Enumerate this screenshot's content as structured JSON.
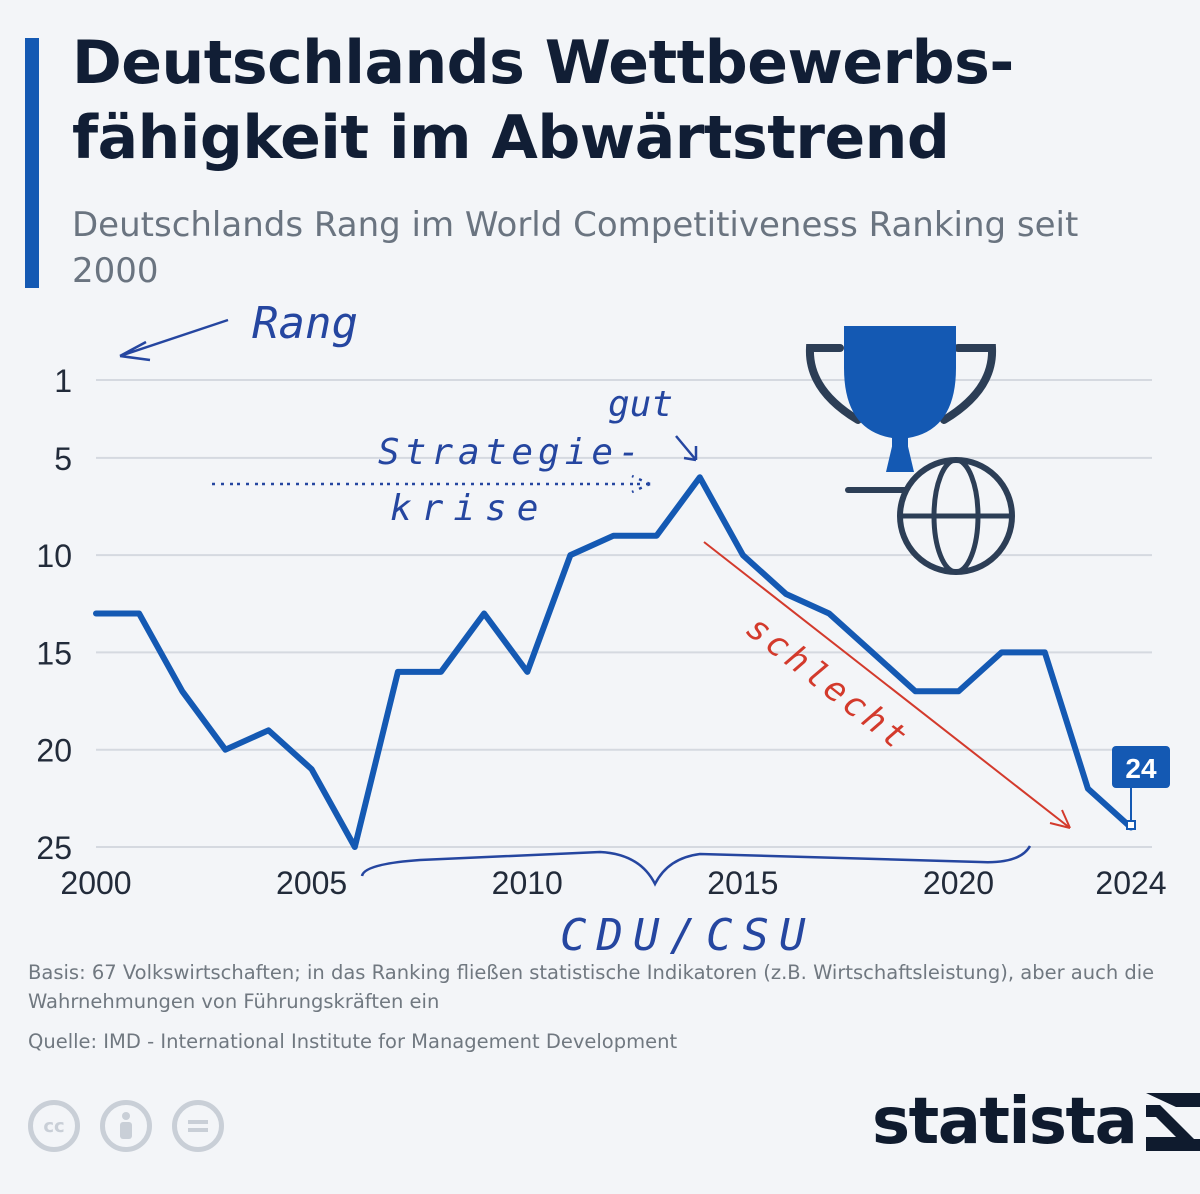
{
  "header": {
    "title": "Deutschlands Wettbewerbs-fähigkeit im Abwärtstrend",
    "subtitle": "Deutschlands Rang im World Competitiveness Ranking seit 2000"
  },
  "chart_data": {
    "type": "line",
    "title": "Deutschlands Rang im World Competitiveness Ranking seit 2000",
    "xlabel": "",
    "ylabel": "Rang",
    "x": [
      2000,
      2001,
      2002,
      2003,
      2004,
      2005,
      2006,
      2007,
      2008,
      2009,
      2010,
      2011,
      2012,
      2013,
      2014,
      2015,
      2016,
      2017,
      2018,
      2019,
      2020,
      2021,
      2022,
      2023,
      2024
    ],
    "series": [
      {
        "name": "Rang Deutschland",
        "values": [
          13,
          13,
          17,
          20,
          19,
          21,
          25,
          16,
          16,
          13,
          16,
          10,
          9,
          9,
          6,
          10,
          12,
          13,
          15,
          17,
          17,
          15,
          15,
          22,
          24
        ]
      }
    ],
    "x_ticks": [
      "2000",
      "2005",
      "2010",
      "2015",
      "2020",
      "2024"
    ],
    "y_ticks": [
      "1",
      "5",
      "10",
      "15",
      "20",
      "25"
    ],
    "y_tick_values": [
      1,
      5,
      10,
      15,
      20,
      25
    ],
    "x_tick_values": [
      2000,
      2005,
      2010,
      2015,
      2020,
      2024
    ],
    "ylim": [
      1,
      25
    ],
    "y_inverted": true,
    "grid": true,
    "last_value_label": "24",
    "line_color": "#1459b3",
    "annotations": {
      "rang": "Rang",
      "gut": "gut",
      "strategie": "Strategie-",
      "krise": "krise",
      "schlecht": "schlecht",
      "cdu_csu": "CDU/CSU"
    }
  },
  "footer": {
    "basis": "Basis: 67 Volkswirtschaften; in das Ranking fließen statistische Indikatoren (z.B. Wirtschaftsleistung), aber auch die Wahrnehmungen von Führungskräften ein",
    "source": "Quelle: IMD - International Institute for Management Development",
    "brand": "statista",
    "license_icons": [
      "cc-icon",
      "by-icon",
      "nd-icon"
    ]
  },
  "colors": {
    "accent": "#1459b3",
    "annotation_blue": "#2546a0",
    "annotation_red": "#d33a2c",
    "grid": "#d5d9e0",
    "text_dark": "#111e35",
    "text_gray": "#6a7480"
  }
}
